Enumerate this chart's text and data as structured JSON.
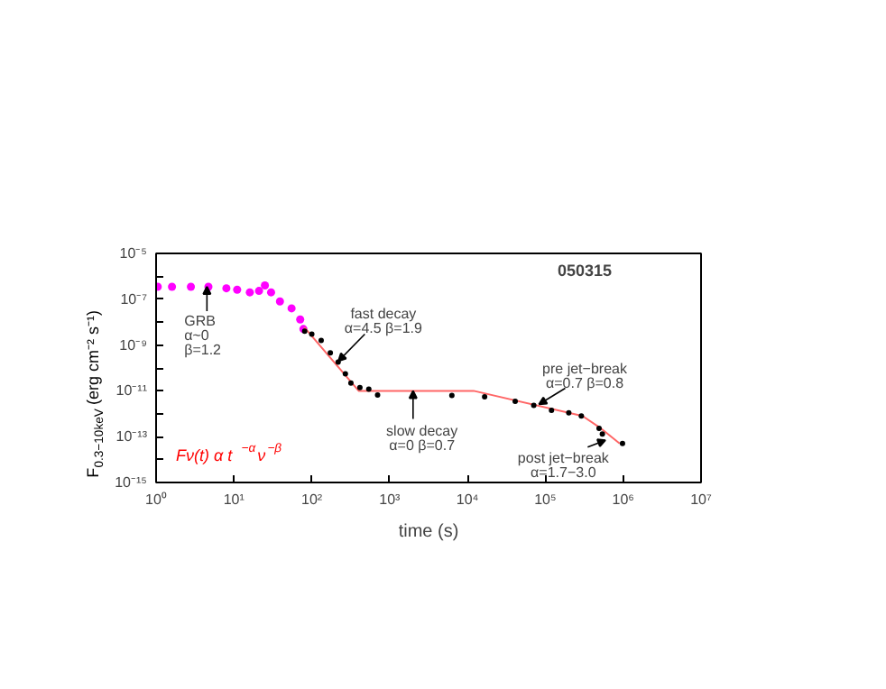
{
  "chart_data": {
    "type": "scatter",
    "title": "050315",
    "xlabel": "time (s)",
    "ylabel": "F$_{0.3−10keV}$ (erg cm⁻² s⁻¹)",
    "log": "xy",
    "grid": false,
    "marker": "circle",
    "xlim": [
      1,
      10000000
    ],
    "ylim": [
      1e-15,
      1e-05
    ],
    "xticks": [
      {
        "value": 1,
        "label": "10⁰"
      },
      {
        "value": 10,
        "label": "10¹"
      },
      {
        "value": 100,
        "label": "10²"
      },
      {
        "value": 1000,
        "label": "10³"
      },
      {
        "value": 10000,
        "label": "10⁴"
      },
      {
        "value": 100000,
        "label": "10⁵"
      },
      {
        "value": 1000000,
        "label": "10⁶"
      },
      {
        "value": 10000000,
        "label": "10⁷"
      }
    ],
    "yticks": [
      {
        "value": 1e-15,
        "label": "10⁻¹⁵"
      },
      {
        "value": 1e-14,
        "label": null
      },
      {
        "value": 1e-13,
        "label": "10⁻¹³"
      },
      {
        "value": 1e-12,
        "label": null
      },
      {
        "value": 1e-11,
        "label": "10⁻¹¹"
      },
      {
        "value": 1e-10,
        "label": null
      },
      {
        "value": 1e-09,
        "label": "10⁻⁹"
      },
      {
        "value": 1e-08,
        "label": null
      },
      {
        "value": 1e-07,
        "label": "10⁻⁷"
      },
      {
        "value": 1e-06,
        "label": null
      },
      {
        "value": 1e-05,
        "label": "10⁻⁵"
      }
    ],
    "series": [
      {
        "color": "#ff00ff",
        "x": [
          1.05,
          1.6,
          2.8,
          4.7,
          8,
          11,
          16,
          21,
          25,
          30,
          39,
          55,
          71,
          78
        ],
        "values": [
          3.5e-07,
          3.5e-07,
          3.5e-07,
          3.5e-07,
          3e-07,
          2.6e-07,
          2e-07,
          2.3e-07,
          4e-07,
          2e-07,
          8e-08,
          4e-08,
          1.3e-08,
          5e-09
        ]
      },
      {
        "type": "line",
        "marker": "none",
        "color": "#ff6666",
        "x": [
          80,
          400,
          12000,
          300000,
          500000,
          900000
        ],
        "values": [
          6e-09,
          1e-11,
          1e-11,
          8e-13,
          2.5e-13,
          5e-14
        ]
      },
      {
        "color": "#000000",
        "x": [
          81,
          100,
          132,
          173,
          218,
          270,
          318,
          415,
          540,
          700,
          6300,
          16600,
          41000,
          71000,
          120000,
          200000,
          290000,
          490000,
          540000,
          980000
        ],
        "values": [
          4e-09,
          3e-09,
          1.6e-09,
          4.6e-10,
          1.8e-10,
          5.5e-11,
          2.2e-11,
          1.4e-11,
          1.2e-11,
          6.6e-12,
          6.3e-12,
          5.5e-12,
          3.5e-12,
          2.3e-12,
          1.4e-12,
          1.1e-12,
          8e-13,
          2.3e-13,
          1.3e-13,
          5e-14
        ]
      }
    ],
    "annotations": [
      {
        "text": "GRB\nα~0\nβ=1.2",
        "x": 4.5,
        "y": 3.5e-07
      },
      {
        "text": "fast decay\nα=4.5 β=1.9",
        "x": 220,
        "y": 2e-10
      },
      {
        "text": "slow decay\nα=0 β=0.7",
        "x": 2000,
        "y": 1e-11
      },
      {
        "text": "pre jet−break\nα=0.7 β=0.8",
        "x": 83000,
        "y": 2.6e-12
      },
      {
        "text": "post jet−break\nα=1.7−3.0",
        "x": 590000,
        "y": 7e-14
      },
      "Fν(t) α t$^{−α}$ν$^{−β}$"
    ]
  }
}
